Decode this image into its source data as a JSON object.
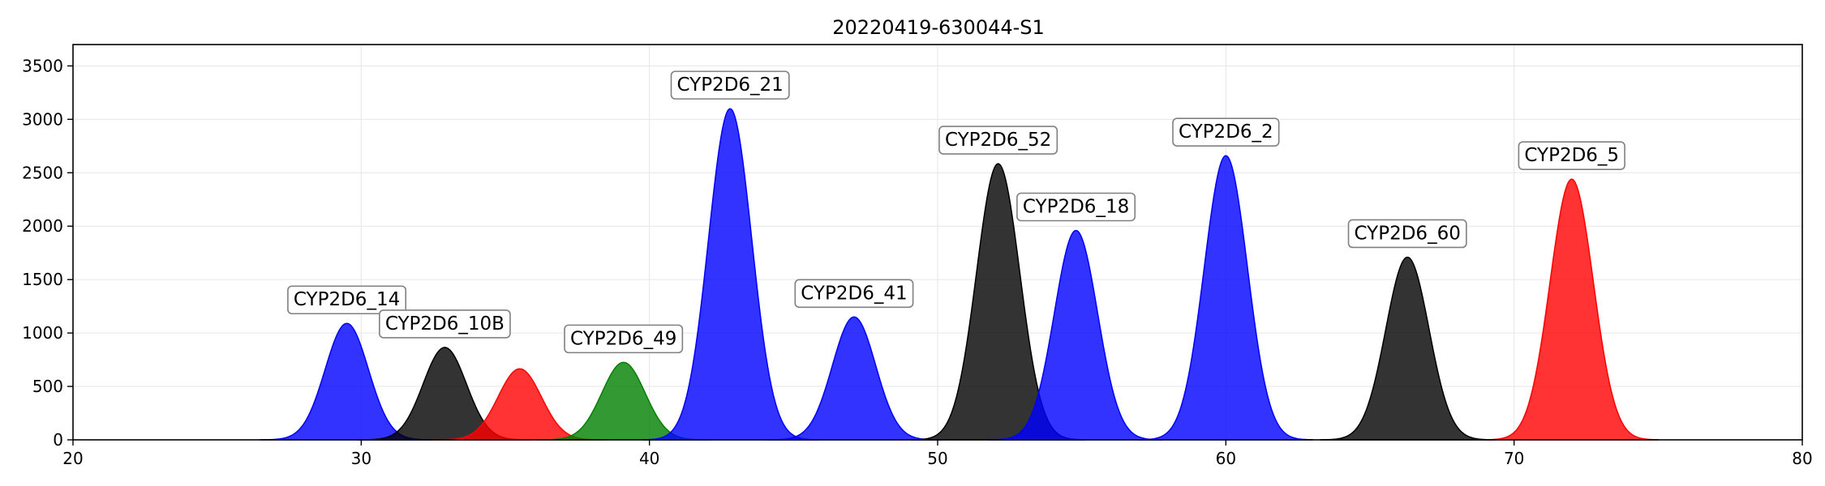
{
  "chart_data": {
    "type": "area",
    "title": "20220419-630044-S1",
    "xlabel": "",
    "ylabel": "",
    "xlim": [
      20,
      80
    ],
    "ylim": [
      0,
      3700
    ],
    "xticks": [
      20,
      30,
      40,
      50,
      60,
      70,
      80
    ],
    "yticks": [
      0,
      500,
      1000,
      1500,
      2000,
      2500,
      3000,
      3500
    ],
    "grid": true,
    "legend": "none",
    "peaks": [
      {
        "label": "CYP2D6_14",
        "center": 29.5,
        "height": 1090,
        "sigma": 0.75,
        "color": "#0000ff"
      },
      {
        "label": "CYP2D6_10B",
        "center": 32.9,
        "height": 865,
        "sigma": 0.75,
        "color": "#000000"
      },
      {
        "label": "",
        "center": 35.5,
        "height": 665,
        "sigma": 0.75,
        "color": "#ff0000"
      },
      {
        "label": "CYP2D6_49",
        "center": 39.1,
        "height": 725,
        "sigma": 0.75,
        "color": "#008000"
      },
      {
        "label": "CYP2D6_21",
        "center": 42.8,
        "height": 3100,
        "sigma": 0.75,
        "color": "#0000ff"
      },
      {
        "label": "CYP2D6_41",
        "center": 47.1,
        "height": 1150,
        "sigma": 0.75,
        "color": "#0000ff"
      },
      {
        "label": "CYP2D6_52",
        "center": 52.1,
        "height": 2585,
        "sigma": 0.75,
        "color": "#000000"
      },
      {
        "label": "CYP2D6_18",
        "center": 54.8,
        "height": 1960,
        "sigma": 0.75,
        "color": "#0000ff"
      },
      {
        "label": "CYP2D6_2",
        "center": 60.0,
        "height": 2660,
        "sigma": 0.75,
        "color": "#0000ff"
      },
      {
        "label": "CYP2D6_60",
        "center": 66.3,
        "height": 1710,
        "sigma": 0.75,
        "color": "#000000"
      },
      {
        "label": "CYP2D6_5",
        "center": 72.0,
        "height": 2440,
        "sigma": 0.75,
        "color": "#ff0000"
      }
    ]
  }
}
